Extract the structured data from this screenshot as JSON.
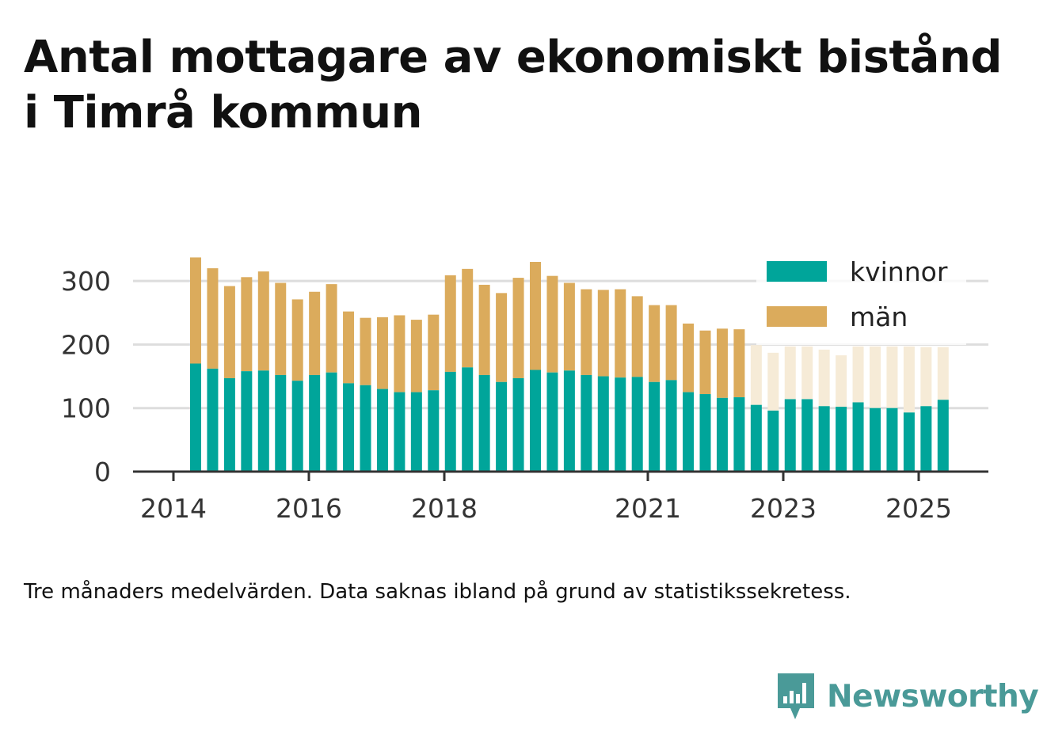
{
  "title": "Antal mottagare av ekonomiskt bistånd i Timrå kommun",
  "caption": "Tre månaders medelvärden. Data saknas ibland på grund av statistikssekretess.",
  "brand": {
    "name": "Newsworthy",
    "color": "#4a9a98",
    "icon": "bar-chart-pin-icon"
  },
  "colors": {
    "kvinnor": "#00a59a",
    "man": "#dbab5c",
    "man_missing": "#f6ebd7",
    "gridline": "#dddddd",
    "axis": "#333333"
  },
  "chart_data": {
    "type": "bar",
    "stacked": true,
    "x_tick_labels": [
      "2014",
      "2016",
      "2018",
      "2021",
      "2023",
      "2025"
    ],
    "y_ticks": [
      0,
      100,
      200,
      300
    ],
    "ylim": [
      0,
      340
    ],
    "legend": {
      "placement": "top-right",
      "entries": [
        "kvinnor",
        "män"
      ]
    },
    "series": [
      {
        "name": "kvinnor",
        "values": [
          170,
          162,
          147,
          158,
          159,
          152,
          143,
          152,
          156,
          139,
          136,
          130,
          125,
          125,
          128,
          157,
          164,
          152,
          141,
          147,
          160,
          156,
          159,
          152,
          150,
          148,
          149,
          141,
          144,
          125,
          122,
          116,
          117,
          105,
          96,
          114,
          114,
          103,
          102,
          109,
          100,
          100,
          93,
          103,
          113
        ]
      },
      {
        "name": "män",
        "values": [
          167,
          158,
          145,
          148,
          156,
          145,
          128,
          131,
          139,
          113,
          106,
          113,
          121,
          114,
          119,
          152,
          155,
          142,
          140,
          158,
          170,
          152,
          138,
          135,
          136,
          139,
          127,
          121,
          118,
          108,
          100,
          109,
          107,
          94,
          91,
          83,
          83,
          89,
          81,
          88,
          97,
          97,
          104,
          93,
          83
        ],
        "missing_from_index": 33
      }
    ]
  }
}
